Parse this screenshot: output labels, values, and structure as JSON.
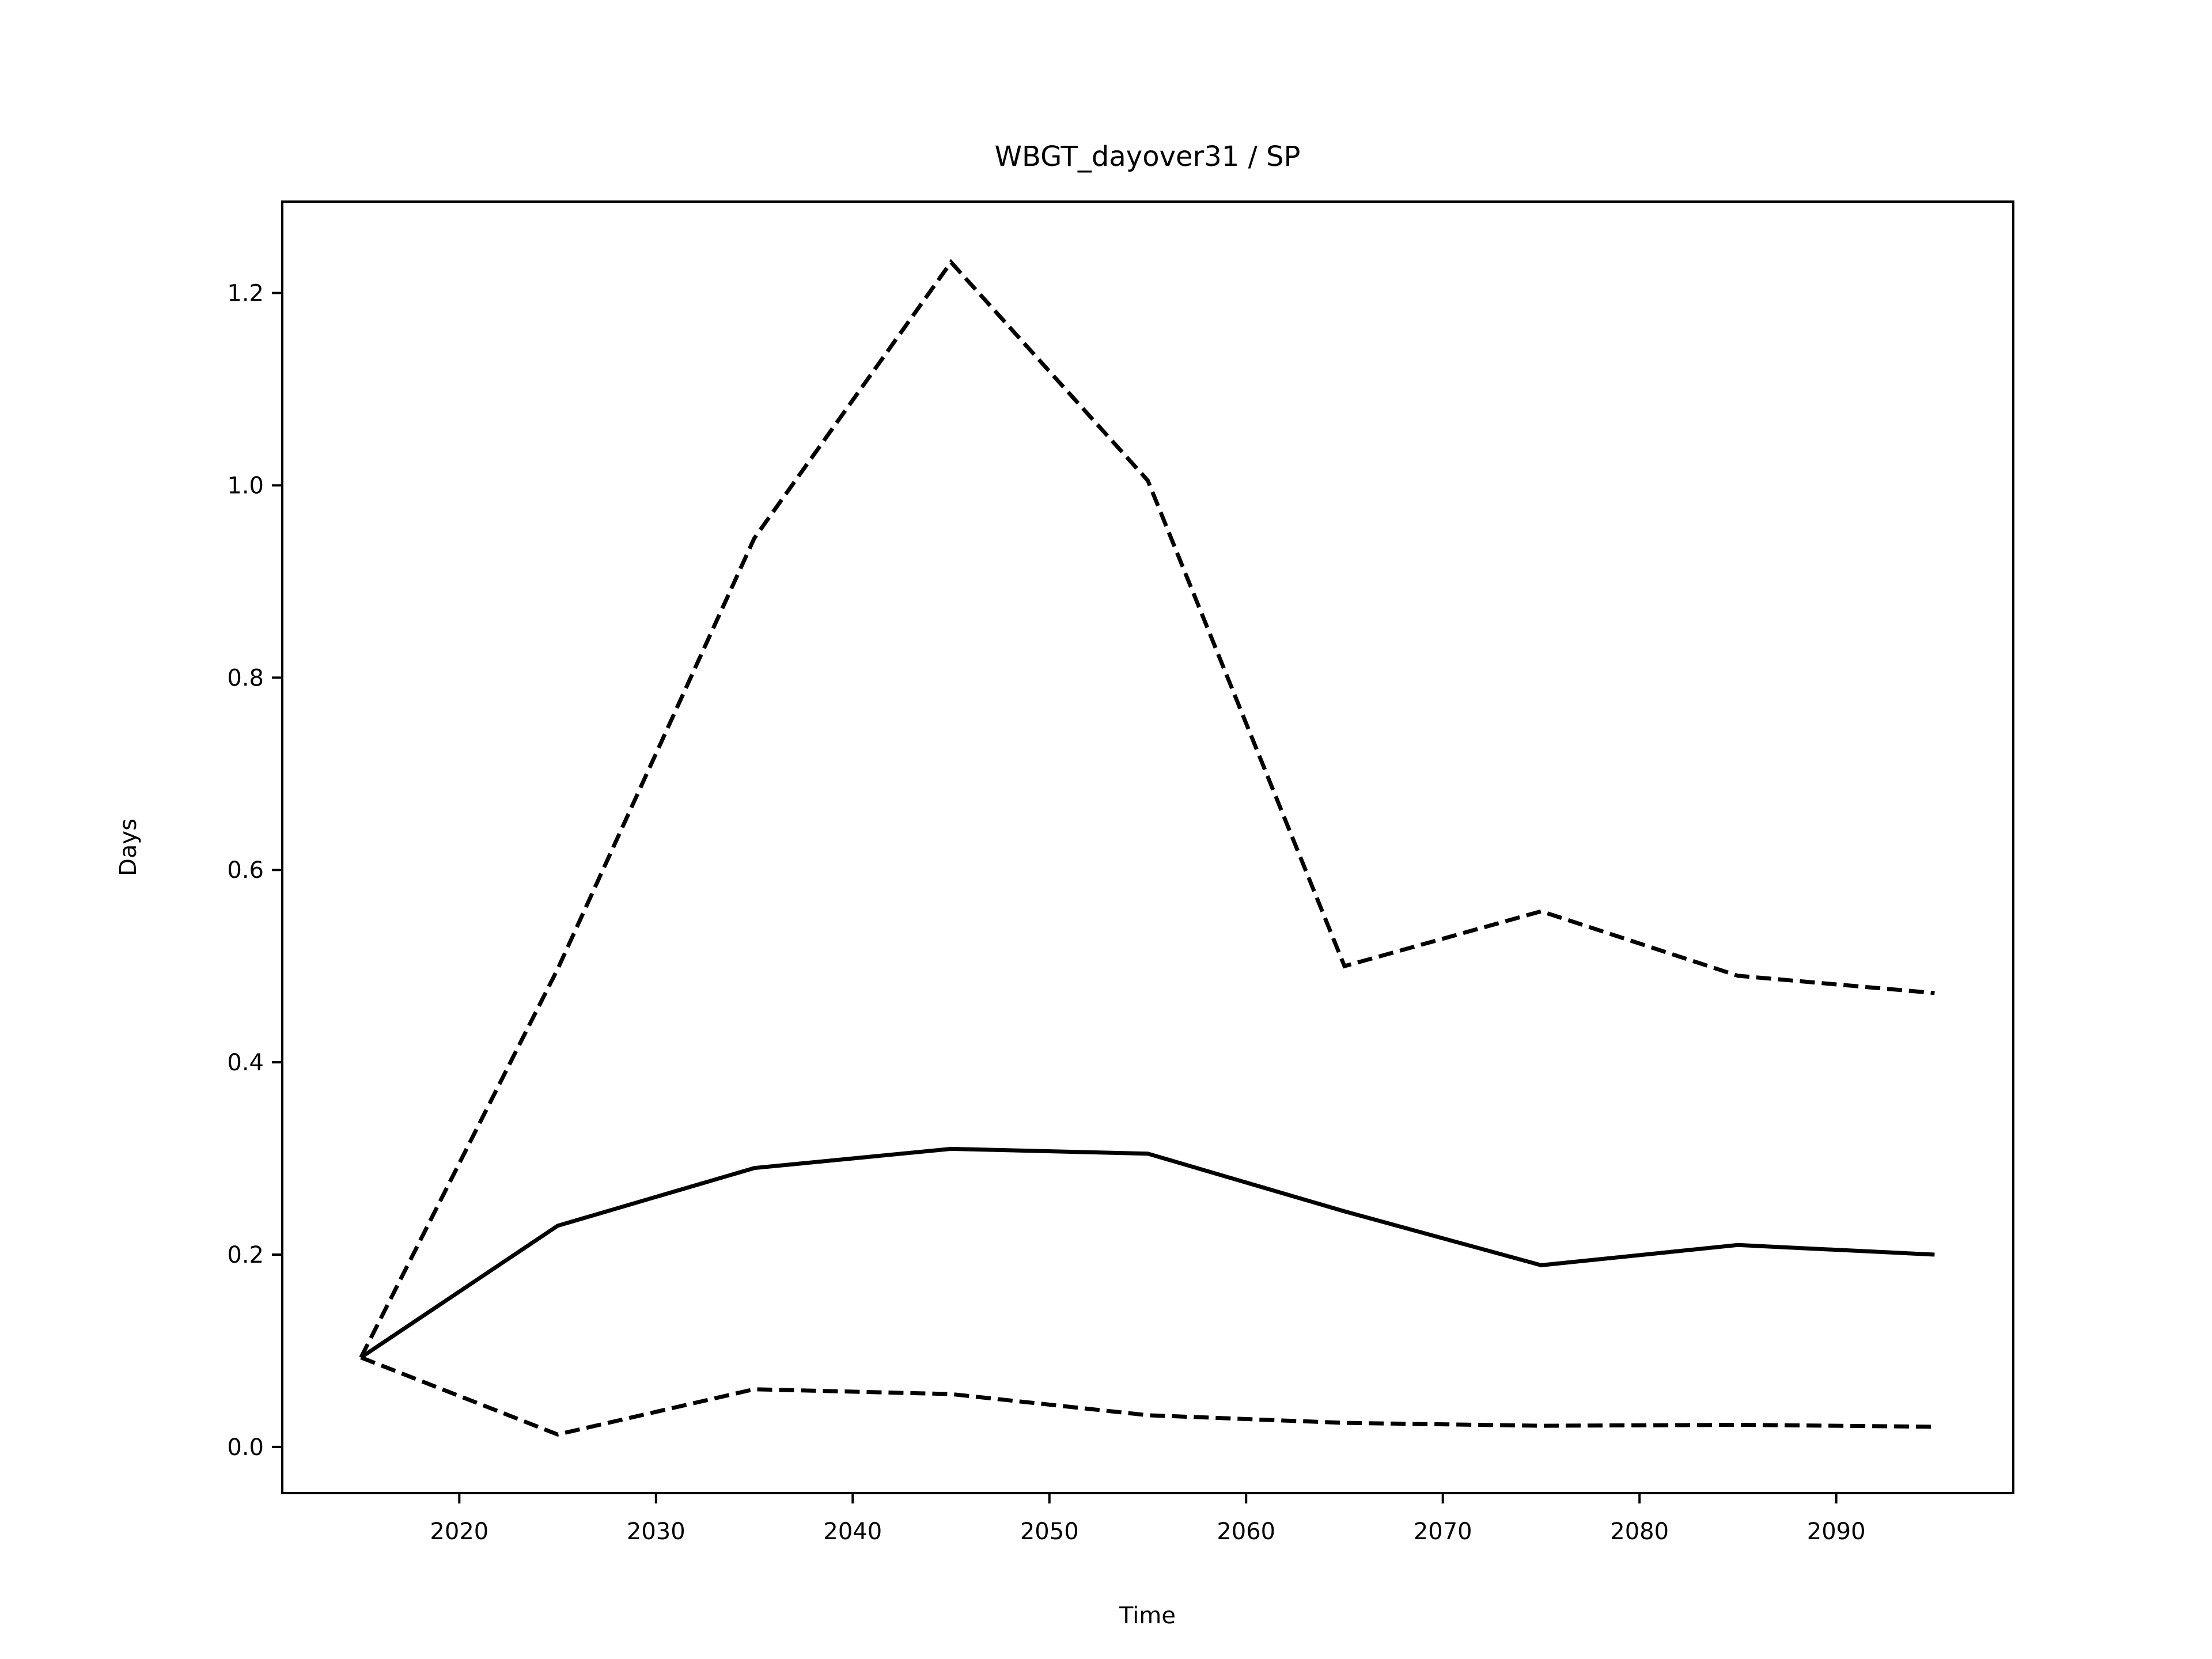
{
  "chart_data": {
    "type": "line",
    "title": "WBGT_dayover31 / SP",
    "xlabel": "Time",
    "ylabel": "Days",
    "xlim": [
      2011,
      2099
    ],
    "ylim": [
      -0.048,
      1.295
    ],
    "xticks": [
      2020,
      2030,
      2040,
      2050,
      2060,
      2070,
      2080,
      2090
    ],
    "yticks": [
      0.0,
      0.2,
      0.4,
      0.6,
      0.8,
      1.0,
      1.2
    ],
    "xtick_labels": [
      "2020",
      "2030",
      "2040",
      "2050",
      "2060",
      "2070",
      "2080",
      "2090"
    ],
    "ytick_labels": [
      "0.0",
      "0.2",
      "0.4",
      "0.6",
      "0.8",
      "1.0",
      "1.2"
    ],
    "grid": false,
    "x": [
      2015,
      2025,
      2035,
      2045,
      2055,
      2065,
      2075,
      2085,
      2095
    ],
    "series": [
      {
        "style": "solid",
        "color": "#000000",
        "values": [
          0.093,
          0.23,
          0.29,
          0.31,
          0.305,
          0.245,
          0.189,
          0.21,
          0.2
        ]
      },
      {
        "style": "dashed",
        "color": "#000000",
        "values": [
          0.093,
          0.497,
          0.945,
          1.232,
          1.005,
          0.5,
          0.557,
          0.49,
          0.472
        ]
      },
      {
        "style": "dashed",
        "color": "#000000",
        "values": [
          0.093,
          0.013,
          0.06,
          0.055,
          0.033,
          0.025,
          0.022,
          0.023,
          0.021
        ]
      }
    ]
  }
}
